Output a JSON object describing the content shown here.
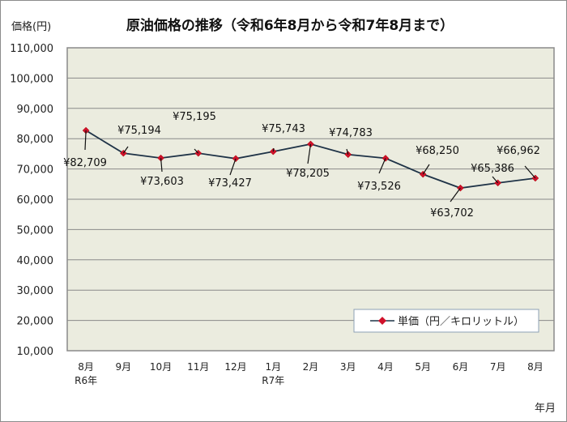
{
  "chart_data": {
    "type": "line",
    "title": "原油価格の推移（令和6年8月から令和7年8月まで）",
    "ylabel": "価格(円)",
    "xlabel": "年月",
    "ylim": [
      10000,
      110000
    ],
    "y_ticks": [
      "10,000",
      "20,000",
      "30,000",
      "40,000",
      "50,000",
      "60,000",
      "70,000",
      "80,000",
      "90,000",
      "100,000",
      "110,000"
    ],
    "grid": true,
    "legend_position": "bottom-right",
    "categories": [
      "8月",
      "9月",
      "10月",
      "11月",
      "12月",
      "1月",
      "2月",
      "3月",
      "4月",
      "5月",
      "6月",
      "7月",
      "8月"
    ],
    "category_sublabels": [
      "R6年",
      "",
      "",
      "",
      "",
      "R7年",
      "",
      "",
      "",
      "",
      "",
      "",
      ""
    ],
    "series": [
      {
        "name": "単価（円／キロリットル）",
        "values": [
          82709,
          75194,
          73603,
          75195,
          73427,
          75743,
          78205,
          74783,
          73526,
          68250,
          63702,
          65386,
          66962
        ],
        "data_labels": [
          "¥82,709",
          "¥75,194",
          "¥73,603",
          "¥75,195",
          "¥73,427",
          "¥75,743",
          "¥78,205",
          "¥74,783",
          "¥73,526",
          "¥68,250",
          "¥63,702",
          "¥65,386",
          "¥66,962"
        ]
      }
    ],
    "colors": {
      "plot_bg": "#ebecdf",
      "line": "#1f3347",
      "marker": "#d0112b",
      "grid": "#8a8a8a"
    }
  }
}
